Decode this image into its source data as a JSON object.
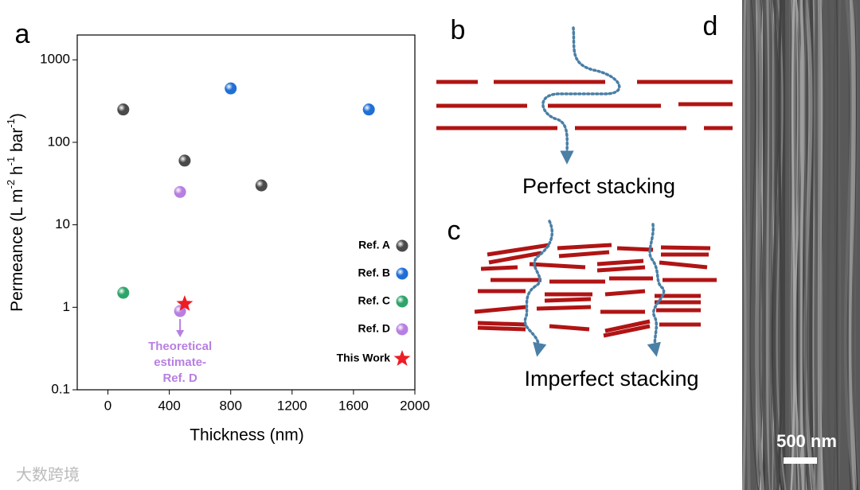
{
  "chart_data": {
    "type": "scatter",
    "xlabel": "Thickness (nm)",
    "ylabel_parts": [
      "Permeance (L m",
      "-2",
      " h",
      "-1",
      " bar",
      "-1",
      ")"
    ],
    "xlim": [
      -200,
      2000
    ],
    "xticks": [
      0,
      400,
      800,
      1200,
      1600,
      2000
    ],
    "ylim": [
      0.1,
      2000
    ],
    "yticks": [
      0.1,
      1,
      10,
      100,
      1000
    ],
    "yscale": "log",
    "legend": "right",
    "series": [
      {
        "name": "Ref. A",
        "color": "#4a4a4a",
        "marker": "sphere",
        "x": [
          100,
          500,
          1000
        ],
        "values": [
          250,
          60,
          30
        ]
      },
      {
        "name": "Ref. B",
        "color": "#1f6fd6",
        "marker": "sphere",
        "x": [
          800,
          1700
        ],
        "values": [
          450,
          250
        ]
      },
      {
        "name": "Ref. C",
        "color": "#2fa46a",
        "marker": "sphere",
        "x": [
          100
        ],
        "values": [
          1.5
        ]
      },
      {
        "name": "Ref. D",
        "color": "#b77fe2",
        "marker": "sphere",
        "x": [
          470,
          470
        ],
        "values": [
          25,
          0.9
        ]
      },
      {
        "name": "This Work",
        "color": "#ee1c24",
        "marker": "star",
        "x": [
          500
        ],
        "values": [
          1.1
        ]
      }
    ],
    "annotation": {
      "lines": [
        "Theoretical",
        "estimate-",
        "Ref. D"
      ],
      "color": "#b77fe2"
    }
  },
  "panel_labels": [
    "a",
    "b",
    "c",
    "d"
  ],
  "diagrams": {
    "b_caption": "Perfect stacking",
    "c_caption": "Imperfect stacking"
  },
  "image": {
    "scale_bar": "500 nm"
  },
  "watermark": "大数跨境"
}
